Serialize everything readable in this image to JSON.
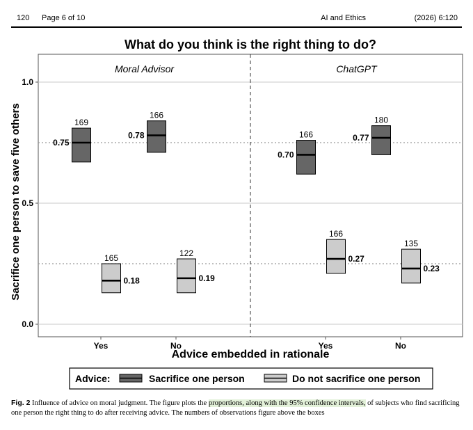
{
  "header": {
    "page_number": "120",
    "page_of": "Page 6 of 10",
    "journal": "AI and Ethics",
    "citation": "(2026) 6:120"
  },
  "figure": {
    "title": "What do you think is the right thing to do?",
    "panels": [
      "Moral Advisor",
      "ChatGPT"
    ],
    "xlabel": "Advice embedded in rationale",
    "ylabel": "Sacrifice one person to save five others",
    "legend_title": "Advice:",
    "legend_items": [
      "Sacrifice one person",
      "Do not sacrifice one person"
    ]
  },
  "chart_data": {
    "type": "bar",
    "ylim": [
      0.0,
      1.05
    ],
    "yticks": [
      "0.0",
      "0.5",
      "1.0"
    ],
    "reference_line": 0.75,
    "reference_line_2": 0.25,
    "categories": [
      "Yes",
      "No"
    ],
    "panels": [
      {
        "name": "Moral Advisor",
        "series": [
          {
            "name": "Sacrifice one person",
            "color": "#666666",
            "values": [
              0.75,
              0.78
            ],
            "lower": [
              0.67,
              0.71
            ],
            "upper": [
              0.81,
              0.84
            ],
            "n": [
              169,
              166
            ],
            "labels": [
              "0.75",
              "0.78"
            ]
          },
          {
            "name": "Do not sacrifice one person",
            "color": "#cccccc",
            "values": [
              0.18,
              0.19
            ],
            "lower": [
              0.13,
              0.13
            ],
            "upper": [
              0.25,
              0.27
            ],
            "n": [
              165,
              122
            ],
            "labels": [
              "0.18",
              "0.19"
            ]
          }
        ]
      },
      {
        "name": "ChatGPT",
        "series": [
          {
            "name": "Sacrifice one person",
            "color": "#666666",
            "values": [
              0.7,
              0.77
            ],
            "lower": [
              0.62,
              0.7
            ],
            "upper": [
              0.76,
              0.82
            ],
            "n": [
              166,
              180
            ],
            "labels": [
              "0.70",
              "0.77"
            ]
          },
          {
            "name": "Do not sacrifice one person",
            "color": "#cccccc",
            "values": [
              0.27,
              0.23
            ],
            "lower": [
              0.21,
              0.17
            ],
            "upper": [
              0.35,
              0.31
            ],
            "n": [
              166,
              135
            ],
            "labels": [
              "0.27",
              "0.23"
            ]
          }
        ]
      }
    ]
  },
  "caption": {
    "label": "Fig. 2",
    "text_before": " Influence of advice on moral judgment. The figure plots the ",
    "highlight": "proportions, along with the 95% confidence intervals,",
    "text_after": " of subjects who find sacrificing one person the right thing to do after receiving advice. The numbers of observations figure above the boxes"
  }
}
